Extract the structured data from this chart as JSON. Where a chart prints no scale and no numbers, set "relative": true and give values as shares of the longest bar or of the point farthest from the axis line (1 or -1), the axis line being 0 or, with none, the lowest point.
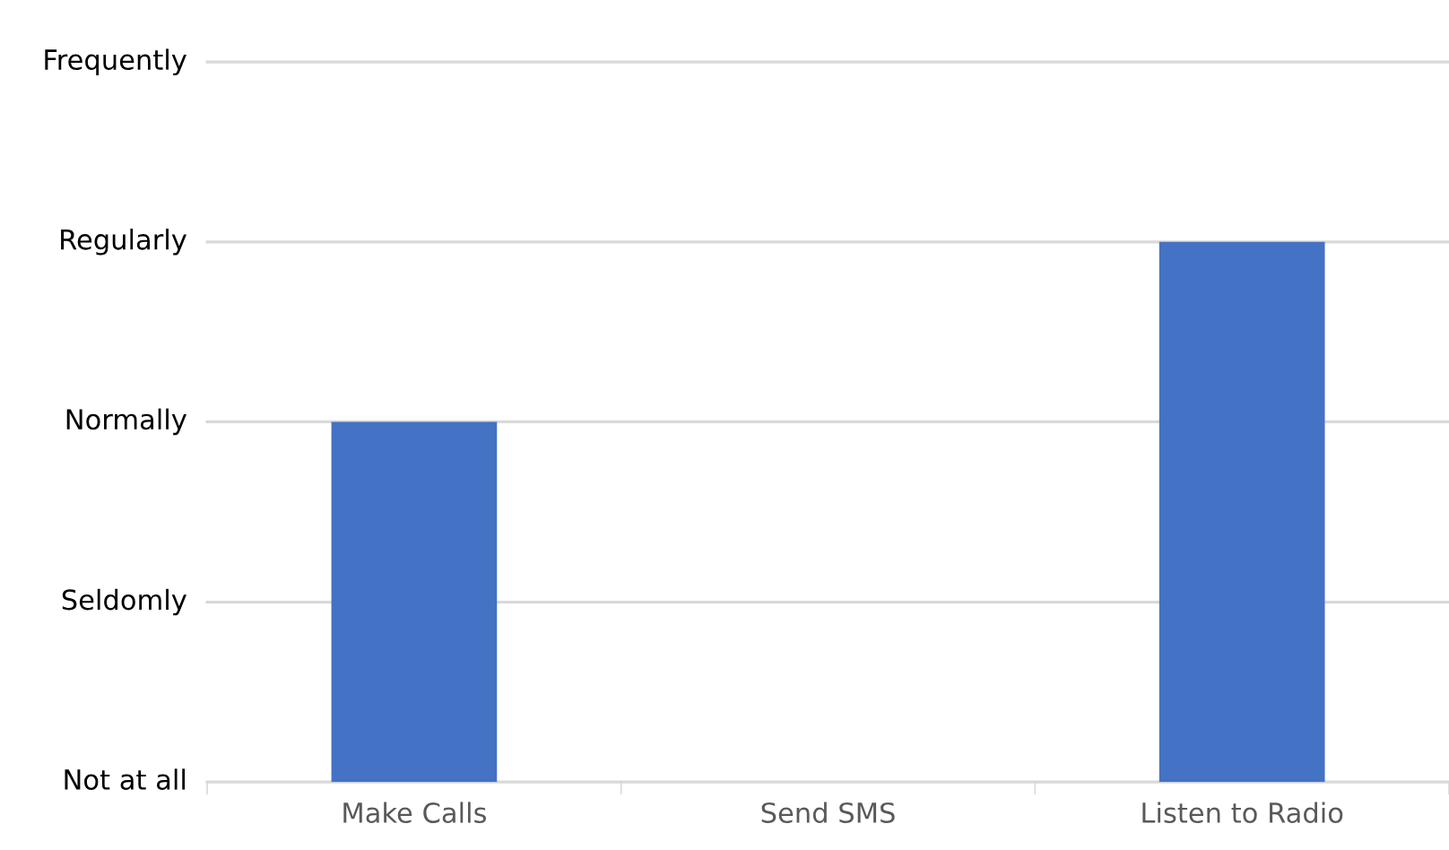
{
  "chart_data": {
    "type": "bar",
    "categories": [
      "Make Calls",
      "Send SMS",
      "Listen to Radio"
    ],
    "values": [
      0.667,
      0,
      1
    ],
    "color": "#4472c4",
    "relative": true,
    "ref_lines": [
      {
        "axis": "y",
        "value": 0,
        "label": "Not at all",
        "color": "#d9d9d9"
      },
      {
        "axis": "y",
        "value": 0.333,
        "label": "Seldomly",
        "color": "#d9d9d9"
      },
      {
        "axis": "y",
        "value": 0.667,
        "label": "Normally",
        "color": "#d9d9d9"
      },
      {
        "axis": "y",
        "value": 1,
        "label": "Regularly",
        "color": "#d9d9d9"
      },
      {
        "axis": "y",
        "value": 1.333,
        "label": "Frequently",
        "color": "#d9d9d9"
      }
    ]
  }
}
